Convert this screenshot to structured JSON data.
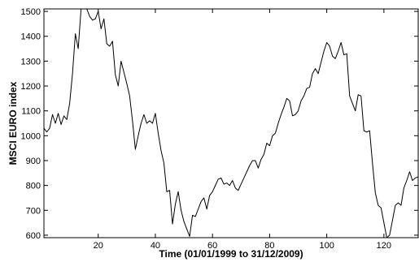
{
  "chart_data": {
    "type": "line",
    "title": "",
    "xlabel": "Time (01/01/1999 to 31/12/2009)",
    "ylabel": "MSCI EURO index",
    "xlim": [
      1,
      132
    ],
    "ylim": [
      590,
      1510
    ],
    "xticks": [
      20,
      40,
      60,
      80,
      100,
      120
    ],
    "yticks": [
      600,
      700,
      800,
      900,
      1000,
      1100,
      1200,
      1300,
      1400,
      1500
    ],
    "grid": false,
    "legend": "none",
    "line_color": "#000000",
    "series": [
      {
        "x": [
          1,
          2,
          3,
          4,
          5,
          6,
          7,
          8,
          9,
          10,
          11,
          12,
          13,
          14,
          15,
          16,
          17,
          18,
          19,
          20,
          21,
          22,
          23,
          24,
          25,
          26,
          27,
          28,
          29,
          30,
          31,
          32,
          33,
          34,
          35,
          36,
          37,
          38,
          39,
          40,
          41,
          42,
          43,
          44,
          45,
          46,
          47,
          48,
          49,
          50,
          51,
          52,
          53,
          54,
          55,
          56,
          57,
          58,
          59,
          60,
          61,
          62,
          63,
          64,
          65,
          66,
          67,
          68,
          69,
          70,
          71,
          72,
          73,
          74,
          75,
          76,
          77,
          78,
          79,
          80,
          81,
          82,
          83,
          84,
          85,
          86,
          87,
          88,
          89,
          90,
          91,
          92,
          93,
          94,
          95,
          96,
          97,
          98,
          99,
          100,
          101,
          102,
          103,
          104,
          105,
          106,
          107,
          108,
          109,
          110,
          111,
          112,
          113,
          114,
          115,
          116,
          117,
          118,
          119,
          120,
          121,
          122,
          123,
          124,
          125,
          126,
          127,
          128,
          129,
          130,
          131,
          132
        ],
        "values": [
          1030,
          1015,
          1030,
          1085,
          1050,
          1090,
          1045,
          1080,
          1065,
          1130,
          1250,
          1410,
          1350,
          1510,
          1510,
          1520,
          1480,
          1465,
          1470,
          1500,
          1430,
          1470,
          1370,
          1360,
          1380,
          1245,
          1200,
          1300,
          1255,
          1210,
          1160,
          1060,
          945,
          1000,
          1050,
          1085,
          1050,
          1060,
          1050,
          1090,
          1010,
          940,
          890,
          775,
          780,
          645,
          725,
          775,
          700,
          655,
          625,
          595,
          680,
          675,
          705,
          735,
          750,
          705,
          760,
          775,
          800,
          825,
          830,
          805,
          810,
          800,
          820,
          790,
          780,
          805,
          830,
          855,
          880,
          900,
          900,
          870,
          905,
          925,
          970,
          960,
          1000,
          1010,
          1050,
          1085,
          1115,
          1150,
          1140,
          1080,
          1085,
          1100,
          1140,
          1160,
          1190,
          1195,
          1250,
          1270,
          1250,
          1295,
          1340,
          1375,
          1360,
          1320,
          1310,
          1340,
          1375,
          1325,
          1330,
          1160,
          1130,
          1100,
          1165,
          1160,
          1020,
          1015,
          1020,
          890,
          770,
          720,
          710,
          650,
          590,
          600,
          660,
          720,
          730,
          720,
          790,
          820,
          855,
          820,
          830,
          835
        ]
      }
    ]
  }
}
